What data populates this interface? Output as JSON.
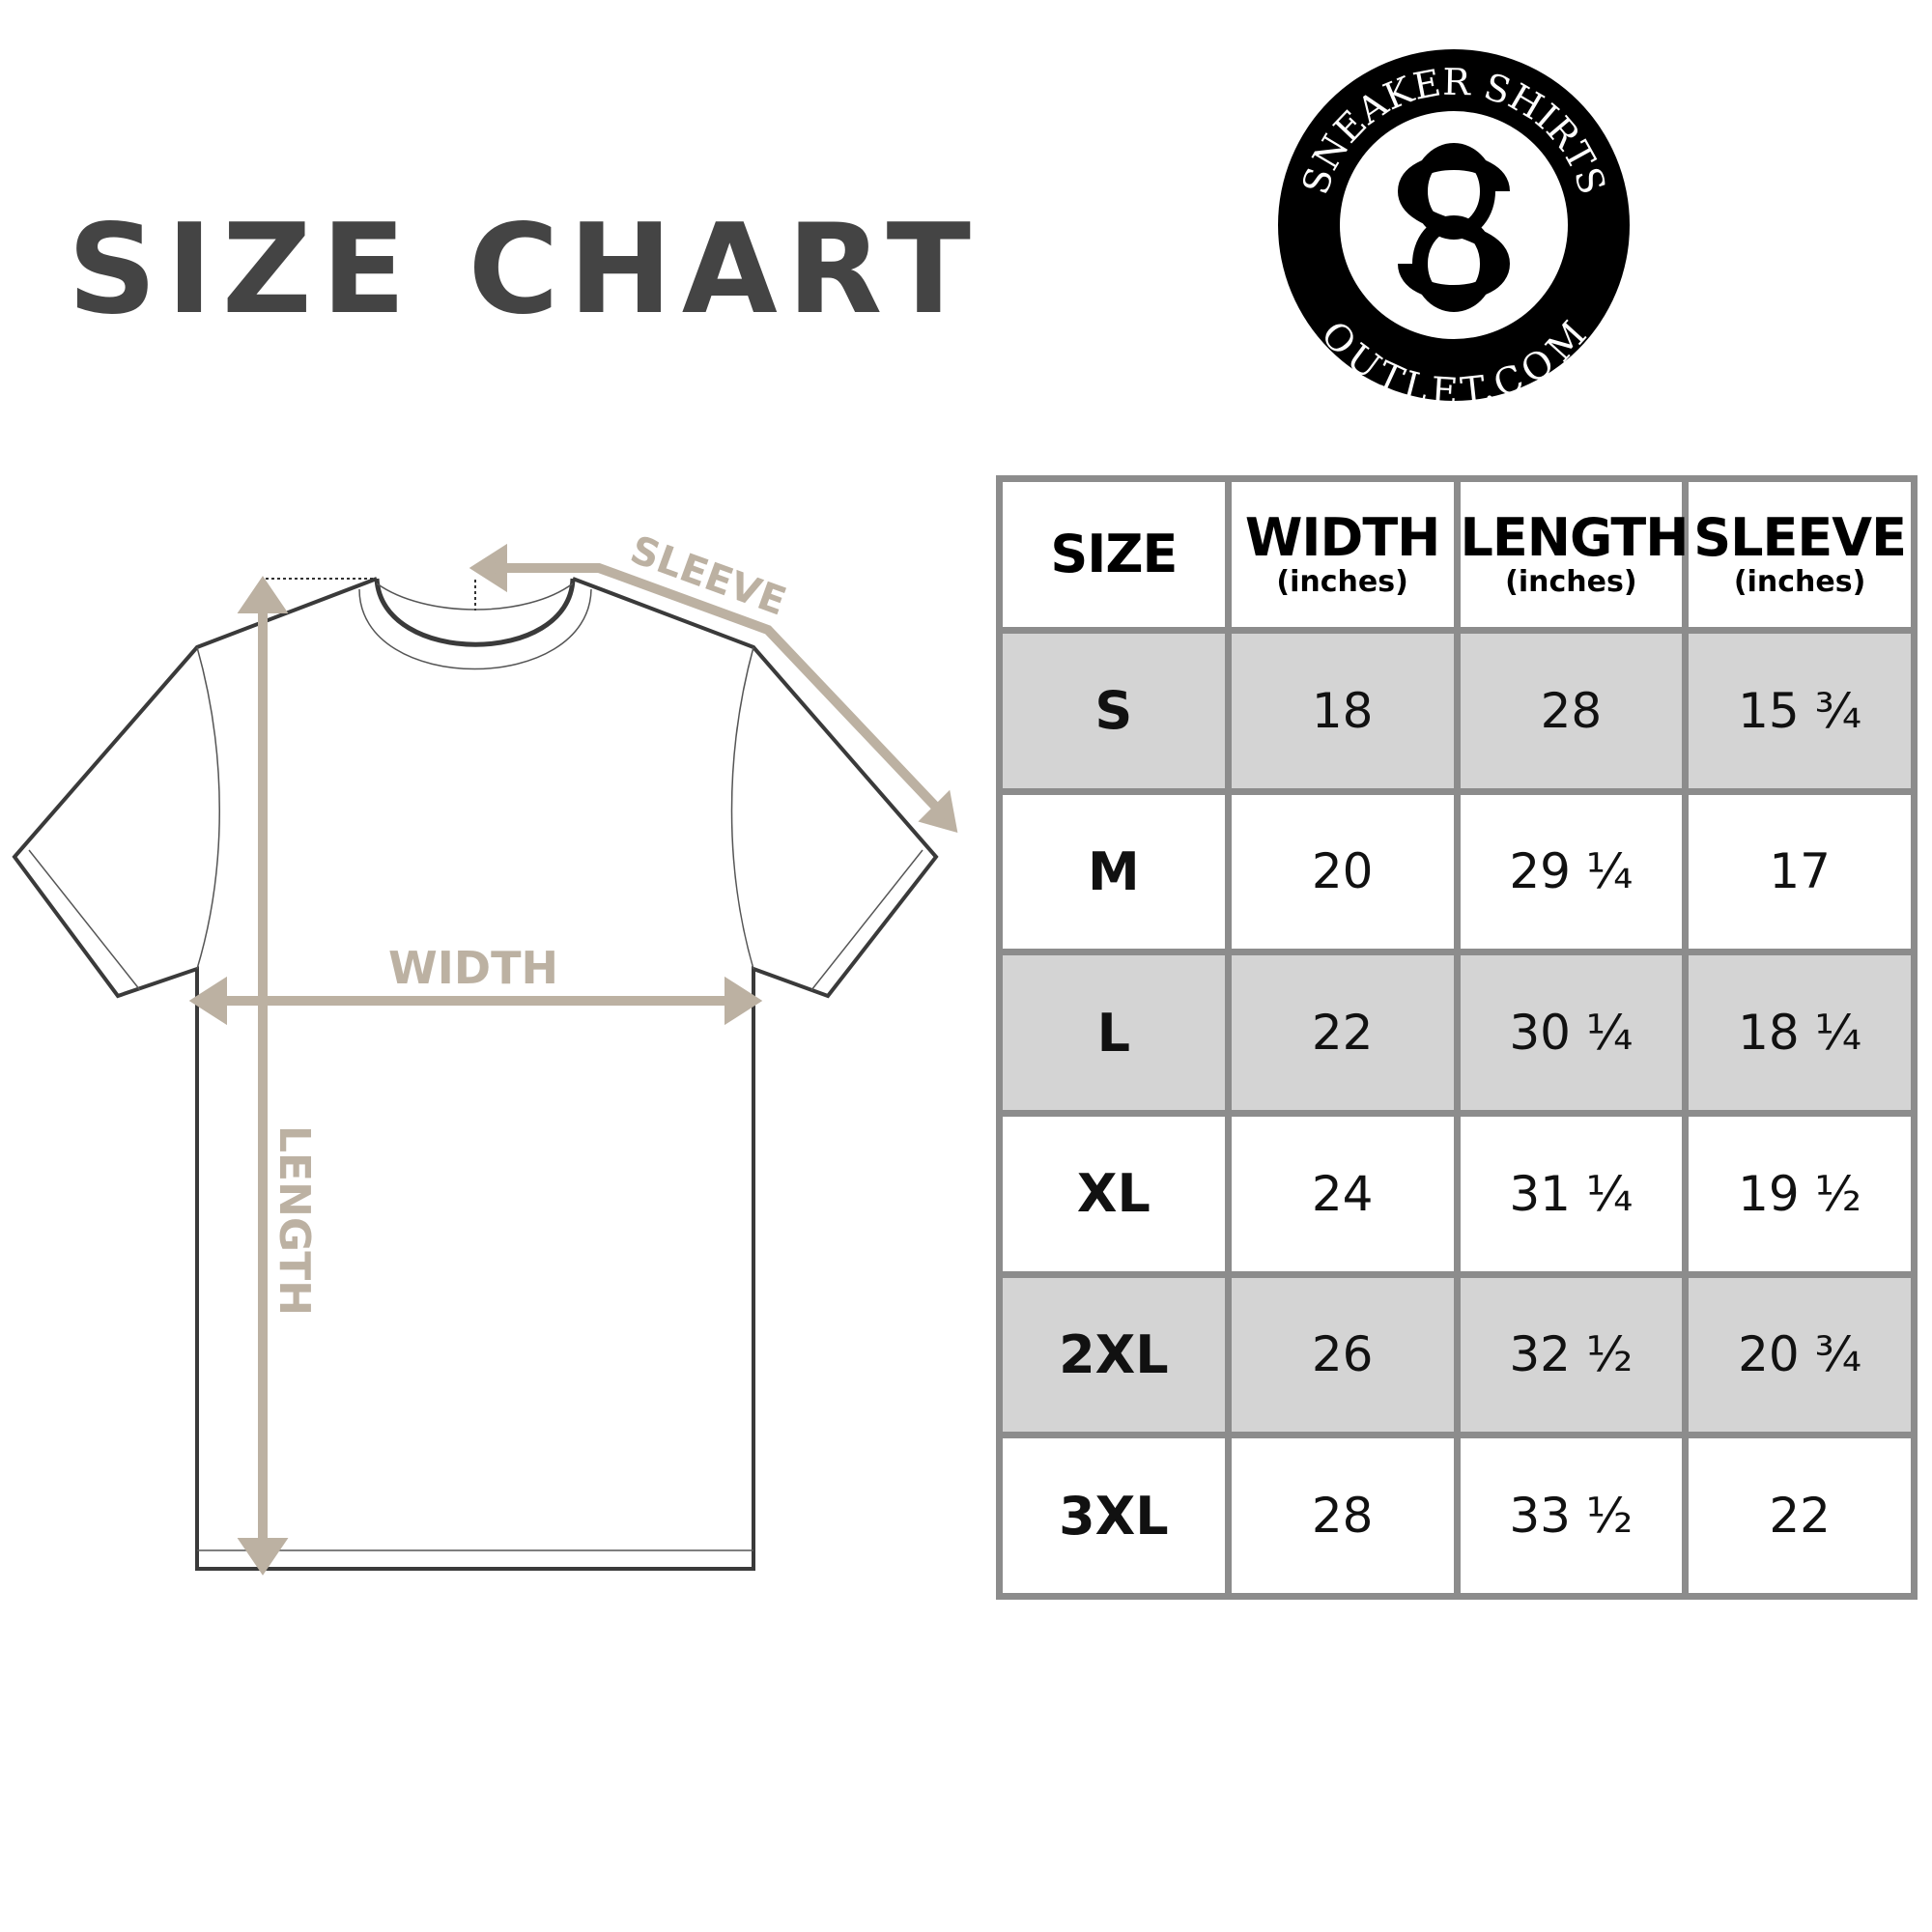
{
  "title": "SIZE CHART",
  "logo": {
    "top_text": "SNEAKER SHIRTS",
    "bottom_text": "OUTLET.COM",
    "monogram": "SO"
  },
  "diagram_labels": {
    "sleeve": "SLEEVE",
    "width": "WIDTH",
    "length": "LENGTH"
  },
  "colors": {
    "accent": "#bcb1a2",
    "title": "#444444",
    "shade": "#d4d4d4",
    "border": "#8c8c8c"
  },
  "table": {
    "headers": [
      {
        "label": "SIZE",
        "unit": ""
      },
      {
        "label": "WIDTH",
        "unit": "(inches)"
      },
      {
        "label": "LENGTH",
        "unit": "(inches)"
      },
      {
        "label": "SLEEVE",
        "unit": "(inches)"
      }
    ],
    "rows": [
      [
        "S",
        "18",
        "28",
        "15 ¾"
      ],
      [
        "M",
        "20",
        "29 ¼",
        "17"
      ],
      [
        "L",
        "22",
        "30 ¼",
        "18 ¼"
      ],
      [
        "XL",
        "24",
        "31 ¼",
        "19 ½"
      ],
      [
        "2XL",
        "26",
        "32 ½",
        "20 ¾"
      ],
      [
        "3XL",
        "28",
        "33 ½",
        "22"
      ]
    ]
  }
}
